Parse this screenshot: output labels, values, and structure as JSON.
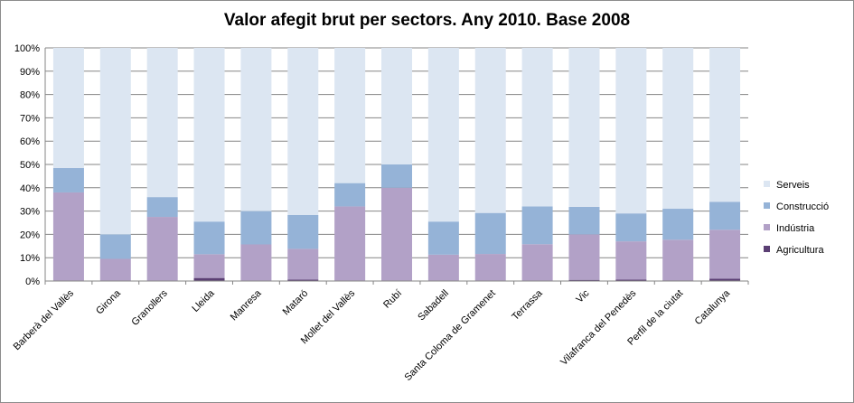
{
  "chart_data": {
    "type": "bar",
    "stacked": true,
    "title": "Valor afegit brut per sectors. Any 2010. Base 2008",
    "categories": [
      "Barberà del Vallès",
      "Girona",
      "Granollers",
      "Lleida",
      "Manresa",
      "Mataró",
      "Mollet del Vallès",
      "Rubí",
      "Sabadell",
      "Santa Coloma de Gramenet",
      "Terrassa",
      "Vic",
      "Vilafranca del Penedès",
      "Perfil de la ciutat",
      "Catalunya"
    ],
    "series": [
      {
        "name": "Agricultura",
        "color": "#5b3f74",
        "values": [
          0.1,
          0.1,
          0.2,
          1.3,
          0.2,
          0.6,
          0.1,
          0.1,
          0.1,
          0.1,
          0.2,
          0.5,
          0.6,
          0.3,
          1.0
        ]
      },
      {
        "name": "Indústria",
        "color": "#b2a1c7",
        "values": [
          37.9,
          9.4,
          27.3,
          10.2,
          15.5,
          13.2,
          31.9,
          39.9,
          11.2,
          11.5,
          15.6,
          19.5,
          16.4,
          17.4,
          21.0
        ]
      },
      {
        "name": "Construcció",
        "color": "#95b3d7",
        "values": [
          10.5,
          10.5,
          8.5,
          14.0,
          14.3,
          14.5,
          10.0,
          10.0,
          14.2,
          17.6,
          16.2,
          11.8,
          12.0,
          13.3,
          12.0
        ]
      },
      {
        "name": "Serveis",
        "color": "#dce6f2",
        "values": [
          51.5,
          80.0,
          64.0,
          74.5,
          70.0,
          71.7,
          58.0,
          50.0,
          74.5,
          70.8,
          68.0,
          68.2,
          71.0,
          69.0,
          66.0
        ]
      }
    ],
    "y_ticks": [
      "0%",
      "10%",
      "20%",
      "30%",
      "40%",
      "50%",
      "60%",
      "70%",
      "80%",
      "90%",
      "100%"
    ],
    "ylim": [
      0,
      100
    ],
    "grid": true,
    "legend_position": "right"
  }
}
